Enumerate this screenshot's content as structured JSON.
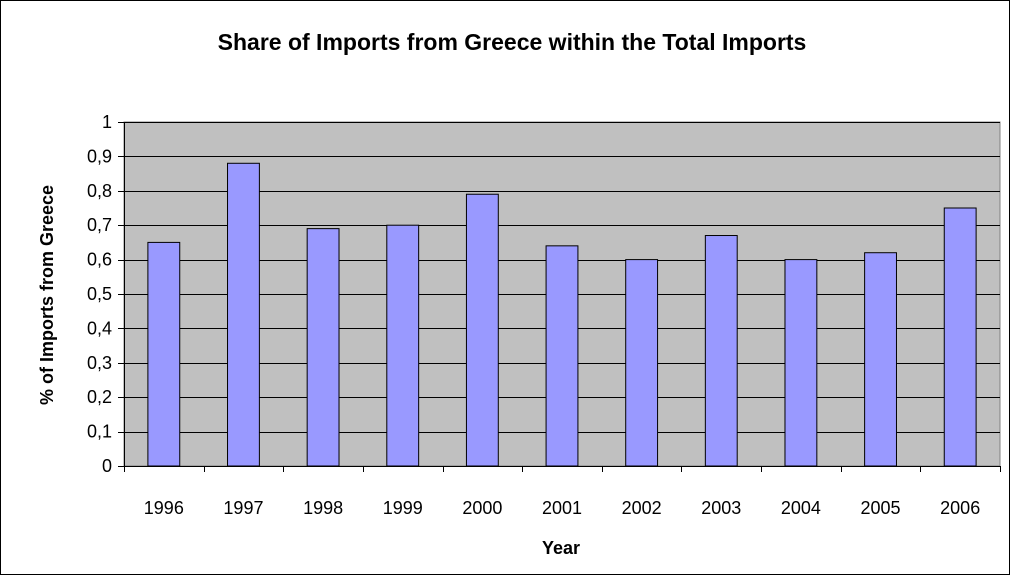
{
  "chart_data": {
    "type": "bar",
    "title": "Share of Imports from Greece within the Total Imports",
    "xlabel": "Year",
    "ylabel": "% of Imports from Greece",
    "categories": [
      "1996",
      "1997",
      "1998",
      "1999",
      "2000",
      "2001",
      "2002",
      "2003",
      "2004",
      "2005",
      "2006"
    ],
    "values": [
      0.65,
      0.88,
      0.69,
      0.7,
      0.79,
      0.64,
      0.6,
      0.67,
      0.6,
      0.62,
      0.75
    ],
    "ylim": [
      0,
      1
    ],
    "yticks": [
      0,
      0.1,
      0.2,
      0.3,
      0.4,
      0.5,
      0.6,
      0.7,
      0.8,
      0.9,
      1
    ],
    "ytick_labels": [
      "0",
      "0,1",
      "0,2",
      "0,3",
      "0,4",
      "0,5",
      "0,6",
      "0,7",
      "0,8",
      "0,9",
      "1"
    ],
    "grid": true,
    "legend": "none",
    "colors": {
      "bar_fill": "#9999ff",
      "plot_background": "#c0c0c0",
      "gridline": "#000000"
    }
  }
}
